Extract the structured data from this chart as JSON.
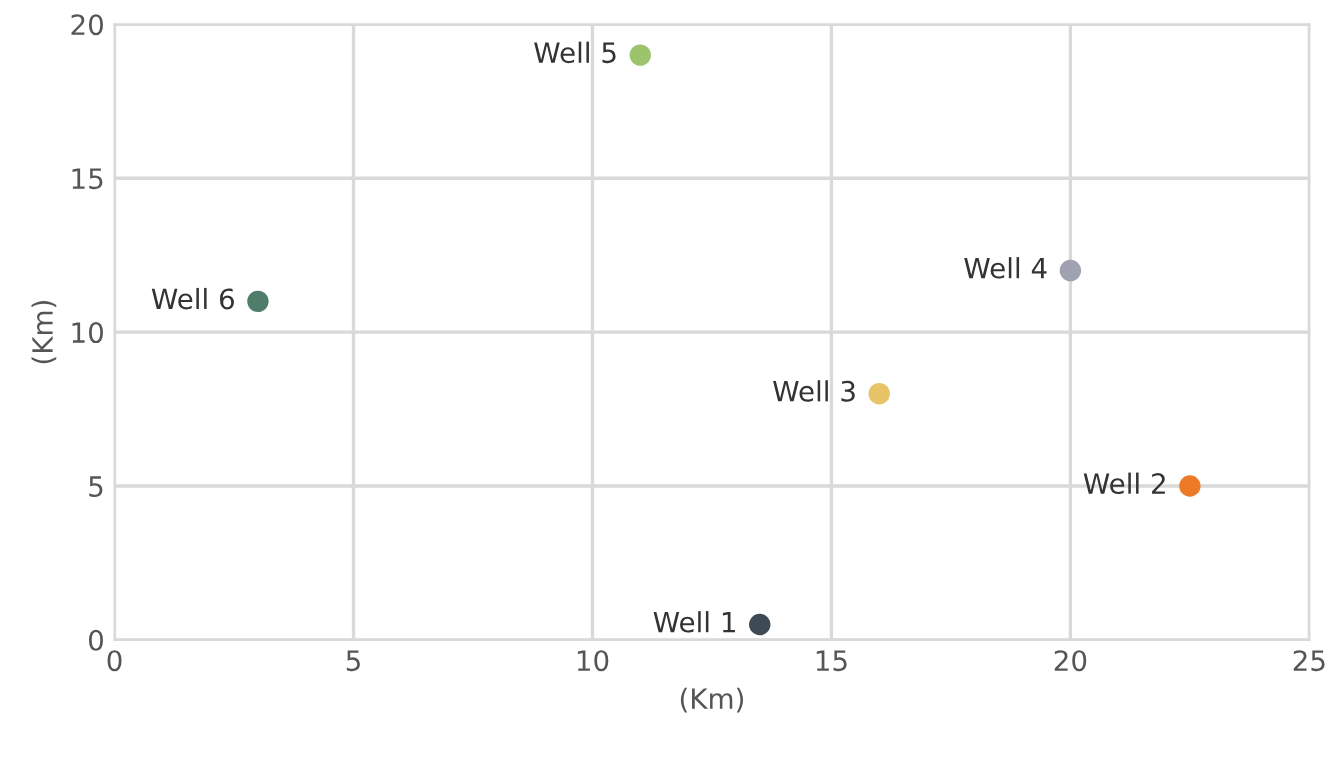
{
  "chart_data": {
    "type": "scatter",
    "xlabel": "(Km)",
    "ylabel": "(Km)",
    "xlim": [
      0,
      25
    ],
    "xticks": [
      0,
      5,
      10,
      15,
      20,
      25
    ],
    "ylim": [
      0,
      20
    ],
    "yticks": [
      0,
      5,
      10,
      15,
      20
    ],
    "grid": true,
    "legend": false,
    "marker": "circle",
    "series": [
      {
        "name": "Well 1",
        "color": "#3e4a54",
        "x": [
          13.5
        ],
        "values": [
          0.5
        ]
      },
      {
        "name": "Well 2",
        "color": "#ec7a26",
        "x": [
          22.5
        ],
        "values": [
          5
        ]
      },
      {
        "name": "Well 3",
        "color": "#e8c468",
        "x": [
          16
        ],
        "values": [
          8
        ]
      },
      {
        "name": "Well 4",
        "color": "#a0a2b2",
        "x": [
          20
        ],
        "values": [
          12
        ]
      },
      {
        "name": "Well 5",
        "color": "#9cc46c",
        "x": [
          11
        ],
        "values": [
          19
        ]
      },
      {
        "name": "Well 6",
        "color": "#4f7d6a",
        "x": [
          3
        ],
        "values": [
          11
        ]
      }
    ]
  }
}
